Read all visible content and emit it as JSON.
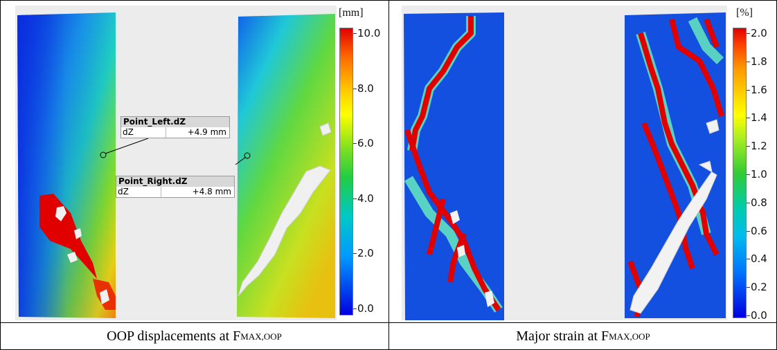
{
  "left_panel": {
    "unit": "[mm]",
    "ticks": [
      "10.0",
      "8.0",
      "6.0",
      "4.0",
      "2.0",
      "0.0"
    ],
    "point_left": {
      "title": "Point_Left.dZ",
      "key": "dZ",
      "value": "+4.9 mm"
    },
    "point_right": {
      "title": "Point_Right.dZ",
      "key": "dZ",
      "value": "+4.8 mm"
    },
    "caption_main": "OOP displacements at F",
    "caption_sub": "MAX,OOP"
  },
  "right_panel": {
    "unit": "[%]",
    "ticks": [
      "2.0",
      "1.8",
      "1.6",
      "1.4",
      "1.2",
      "1.0",
      "0.8",
      "0.6",
      "0.4",
      "0.2",
      "0.0"
    ],
    "caption_main": "Major strain at F",
    "caption_sub": "MAX,OOP"
  },
  "colors": {
    "scale": [
      "#e00000",
      "#ff8c00",
      "#ffff00",
      "#33cc33",
      "#00cccc",
      "#0077ff",
      "#0000e0"
    ],
    "background": "#ececec"
  }
}
